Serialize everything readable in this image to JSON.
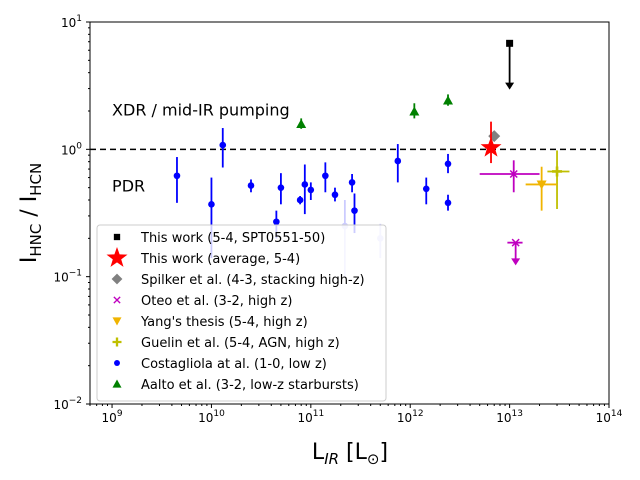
{
  "chart_data": {
    "type": "scatter",
    "xscale": "log",
    "yscale": "log",
    "xlim": [
      600000000.0,
      100000000000000.0
    ],
    "ylim": [
      0.01,
      10
    ],
    "xlabel_main": "L",
    "xlabel_sub": "IR",
    "xlabel_unit_open": " [L",
    "xlabel_unit_sub": "⊙",
    "xlabel_unit_close": "]",
    "ylabel_main_1": "I",
    "ylabel_sub_1": "HNC",
    "ylabel_sep": " / I",
    "ylabel_sub_2": "HCN",
    "x_ticks": [
      {
        "value": 1000000000.0,
        "base": "10",
        "exp": "9"
      },
      {
        "value": 10000000000.0,
        "base": "10",
        "exp": "10"
      },
      {
        "value": 100000000000.0,
        "base": "10",
        "exp": "11"
      },
      {
        "value": 1000000000000.0,
        "base": "10",
        "exp": "12"
      },
      {
        "value": 10000000000000.0,
        "base": "10",
        "exp": "13"
      },
      {
        "value": 100000000000000.0,
        "base": "10",
        "exp": "14"
      }
    ],
    "y_ticks": [
      {
        "value": 0.01,
        "base": "10",
        "exp": "−2"
      },
      {
        "value": 0.1,
        "base": "10",
        "exp": "−1"
      },
      {
        "value": 1,
        "base": "10",
        "exp": "0"
      },
      {
        "value": 10,
        "base": "10",
        "exp": "1"
      }
    ],
    "reference_line": {
      "y": 1.0,
      "style": "dashed",
      "color": "#000000"
    },
    "annotations": [
      {
        "text": "XDR / mid-IR pumping",
        "x": 1000000000.0,
        "y": 2.05
      },
      {
        "text": "PDR",
        "x": 1000000000.0,
        "y": 0.52
      }
    ],
    "series": [
      {
        "name": "Aalto et al. (3-2, low-z starbursts)",
        "marker": "triangle",
        "color": "#008000",
        "alpha": 1,
        "points": [
          {
            "x": 80000000000.0,
            "y": 1.58,
            "ylo": 1.45,
            "yhi": 1.75
          },
          {
            "x": 1100000000000.0,
            "y": 1.98,
            "ylo": 1.75,
            "yhi": 2.3
          },
          {
            "x": 2400000000000.0,
            "y": 2.42,
            "ylo": 2.2,
            "yhi": 2.7
          }
        ]
      },
      {
        "name": "Costagliola at al. (1-0, low z)",
        "marker": "circle",
        "color": "#0000ff",
        "alpha": 1,
        "points": [
          {
            "x": 4500000000.0,
            "y": 0.62,
            "ylo": 0.38,
            "yhi": 0.87
          },
          {
            "x": 10000000000.0,
            "y": 0.37,
            "ylo": 0.14,
            "yhi": 0.6
          },
          {
            "x": 13000000000.0,
            "y": 1.08,
            "ylo": 0.72,
            "yhi": 1.47
          },
          {
            "x": 25000000000.0,
            "y": 0.52,
            "ylo": 0.46,
            "yhi": 0.58
          },
          {
            "x": 45000000000.0,
            "y": 0.27,
            "ylo": 0.2,
            "yhi": 0.33
          },
          {
            "x": 50000000000.0,
            "y": 0.5,
            "ylo": 0.37,
            "yhi": 0.65
          },
          {
            "x": 78000000000.0,
            "y": 0.4,
            "ylo": 0.37,
            "yhi": 0.43
          },
          {
            "x": 87000000000.0,
            "y": 0.53,
            "ylo": 0.31,
            "yhi": 0.76
          },
          {
            "x": 100000000000.0,
            "y": 0.48,
            "ylo": 0.4,
            "yhi": 0.55
          },
          {
            "x": 140000000000.0,
            "y": 0.62,
            "ylo": 0.46,
            "yhi": 0.79
          },
          {
            "x": 175000000000.0,
            "y": 0.44,
            "ylo": 0.39,
            "yhi": 0.5
          },
          {
            "x": 260000000000.0,
            "y": 0.55,
            "ylo": 0.46,
            "yhi": 0.64
          },
          {
            "x": 275000000000.0,
            "y": 0.33,
            "ylo": 0.22,
            "yhi": 0.45
          },
          {
            "x": 750000000000.0,
            "y": 0.81,
            "ylo": 0.55,
            "yhi": 1.1
          },
          {
            "x": 1450000000000.0,
            "y": 0.49,
            "ylo": 0.37,
            "yhi": 0.6
          },
          {
            "x": 2400000000000.0,
            "y": 0.77,
            "ylo": 0.65,
            "yhi": 0.92
          },
          {
            "x": 2400000000000.0,
            "y": 0.38,
            "ylo": 0.33,
            "yhi": 0.44
          }
        ]
      },
      {
        "name": "Costagliola at al. (1-0, low z) — faded",
        "marker": "circle",
        "color": "#0000ff",
        "alpha": 0.2,
        "points": [
          {
            "x": 220000000000.0,
            "y": 0.25,
            "ylo": 0.1,
            "yhi": 0.4
          },
          {
            "x": 500000000000.0,
            "y": 0.2,
            "ylo": 0.14,
            "yhi": 0.26
          }
        ]
      },
      {
        "name": "Guelin et al. (5-4, AGN, high z)",
        "marker": "plus",
        "color": "#bfbf00",
        "alpha": 1,
        "points": [
          {
            "x": 30000000000000.0,
            "y": 0.67,
            "ylo": 0.34,
            "yhi": 0.98,
            "xlo": 24000000000000.0,
            "xhi": 40000000000000.0
          }
        ]
      },
      {
        "name": "Yang's thesis (5-4, high z)",
        "marker": "triangle-down",
        "color": "#f0b400",
        "alpha": 1,
        "points": [
          {
            "x": 21000000000000.0,
            "y": 0.53,
            "ylo": 0.33,
            "yhi": 0.73,
            "xlo": 14500000000000.0,
            "xhi": 30000000000000.0
          }
        ]
      },
      {
        "name": "Oteo et al. (3-2, high z)",
        "marker": "x",
        "color": "#bf00bf",
        "alpha": 1,
        "points": [
          {
            "x": 11000000000000.0,
            "y": 0.64,
            "ylo": 0.46,
            "yhi": 0.82,
            "xlo": 5000000000000.0,
            "xhi": 20000000000000.0
          },
          {
            "x": 11500000000000.0,
            "y": 0.185,
            "upper_limit": true,
            "arrow_to": 0.125,
            "xlo": 9500000000000.0,
            "xhi": 13500000000000.0
          }
        ]
      },
      {
        "name": "Spilker et al. (4-3, stacking high-z)",
        "marker": "diamond",
        "color": "#808080",
        "alpha": 1,
        "points": [
          {
            "x": 7000000000000.0,
            "y": 1.27
          }
        ]
      },
      {
        "name": "This work (average, 5-4)",
        "marker": "star",
        "color": "#ff0000",
        "alpha": 1,
        "points": [
          {
            "x": 6500000000000.0,
            "y": 1.03,
            "ylo": 0.78,
            "yhi": 1.65
          }
        ]
      },
      {
        "name": "This work (5-4, SPT0551-50)",
        "marker": "square",
        "color": "#000000",
        "alpha": 1,
        "points": [
          {
            "x": 10000000000000.0,
            "y": 6.8,
            "upper_limit": true,
            "arrow_to": 3.0,
            "xlo": 9300000000000.0,
            "xhi": 10700000000000.0
          }
        ]
      }
    ],
    "legend": {
      "location": "lower-left",
      "entries": [
        {
          "label": "This work (5-4, SPT0551-50)",
          "marker": "square",
          "color": "#000000"
        },
        {
          "label": "This work (average, 5-4)",
          "marker": "star",
          "color": "#ff0000"
        },
        {
          "label": "Spilker et al. (4-3, stacking high-z)",
          "marker": "diamond",
          "color": "#808080"
        },
        {
          "label": "Oteo et al. (3-2, high z)",
          "marker": "x",
          "color": "#bf00bf"
        },
        {
          "label": "Yang's thesis (5-4, high z)",
          "marker": "triangle-down",
          "color": "#f0b400"
        },
        {
          "label": "Guelin et al. (5-4, AGN, high z)",
          "marker": "plus",
          "color": "#bfbf00"
        },
        {
          "label": "Costagliola at al. (1-0, low z)",
          "marker": "circle",
          "color": "#0000ff"
        },
        {
          "label": "Aalto et al. (3-2, low-z starbursts)",
          "marker": "triangle",
          "color": "#008000"
        }
      ]
    }
  }
}
